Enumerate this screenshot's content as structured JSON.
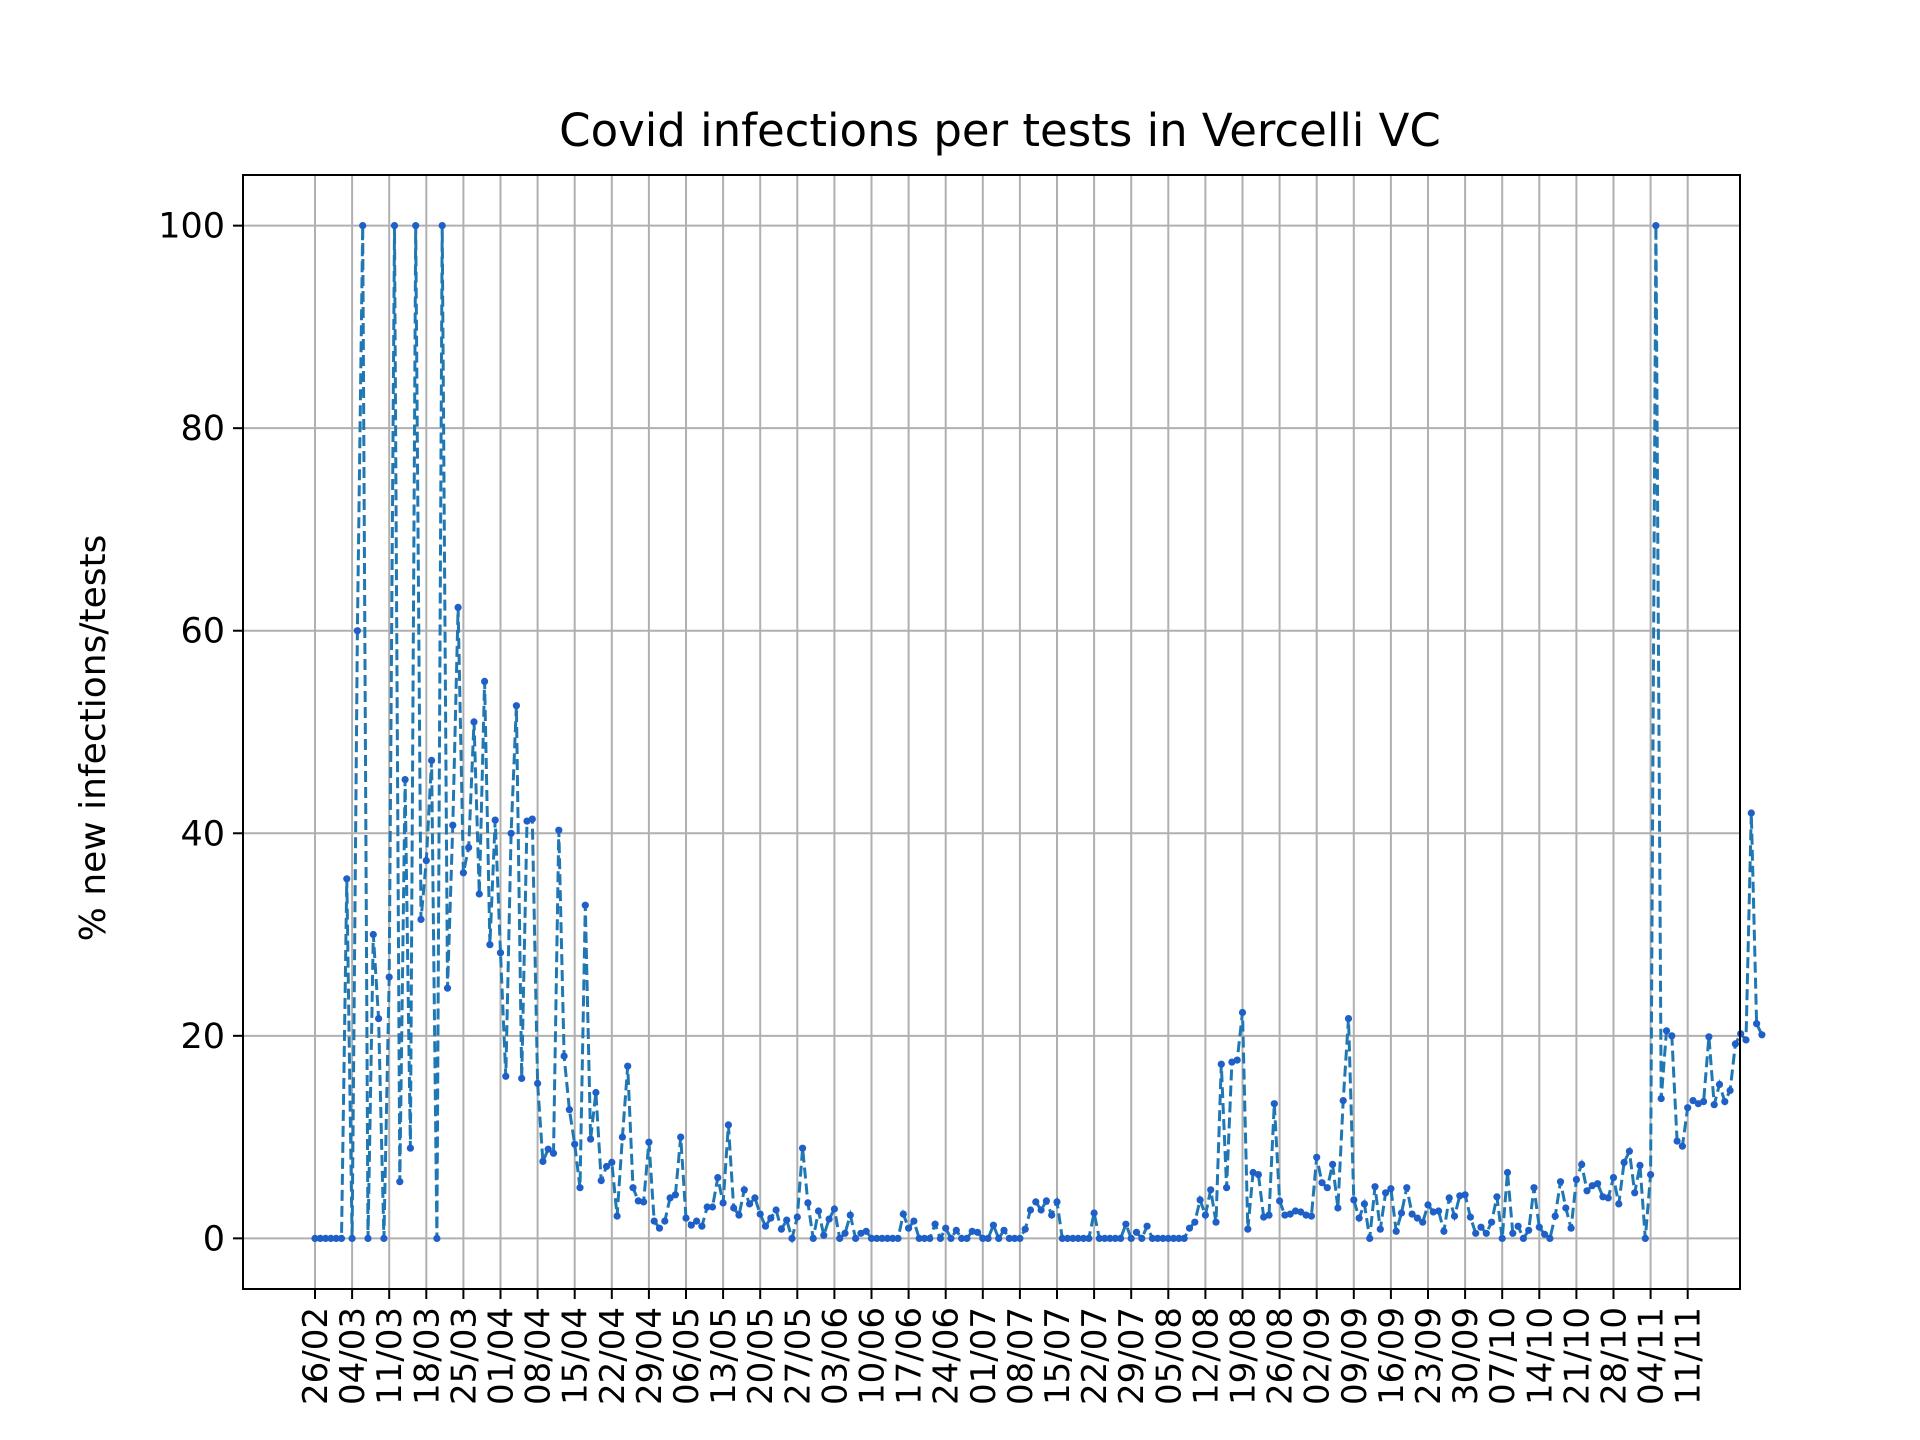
{
  "chart_data": {
    "type": "line",
    "title": "Covid infections per tests in Vercelli VC",
    "xlabel": "",
    "ylabel": "% new infections/tests",
    "ylim": [
      -5,
      105
    ],
    "y_ticks": [
      0,
      20,
      40,
      60,
      80,
      100
    ],
    "x_tick_labels": [
      "26/02",
      "04/03",
      "11/03",
      "18/03",
      "25/03",
      "01/04",
      "08/04",
      "15/04",
      "22/04",
      "29/04",
      "06/05",
      "13/05",
      "20/05",
      "27/05",
      "03/06",
      "10/06",
      "17/06",
      "24/06",
      "01/07",
      "08/07",
      "15/07",
      "22/07",
      "29/07",
      "05/08",
      "12/08",
      "19/08",
      "26/08",
      "02/09",
      "09/09",
      "16/09",
      "23/09",
      "30/09",
      "07/10",
      "14/10",
      "21/10",
      "28/10",
      "04/11",
      "11/11"
    ],
    "grid": true,
    "line_color": "#1f77b4",
    "marker_color": "#1f5fc8",
    "series": [
      {
        "values": [
          0,
          0,
          0,
          0,
          0,
          0,
          35.5,
          0,
          60,
          100,
          0,
          30,
          21.7,
          0,
          25.8,
          100,
          5.6,
          45.3,
          8.9,
          100,
          31.5,
          37.3,
          47.2,
          0,
          100,
          24.7,
          40.8,
          62.3,
          36.1,
          38.6,
          51,
          34,
          55,
          29,
          41.3,
          28.2,
          16,
          40,
          52.6,
          15.8,
          41.2,
          41.4,
          15.3,
          7.6,
          8.8,
          8.4,
          40.3,
          18,
          12.7,
          9.3,
          5,
          32.9,
          9.8,
          14.4,
          5.7,
          7.1,
          7.5,
          2.2,
          10,
          17,
          5,
          3.7,
          3.6,
          9.5,
          1.7,
          1,
          1.7,
          4,
          4.3,
          10,
          2,
          1.3,
          1.7,
          1.2,
          3.1,
          3.1,
          6,
          3.5,
          11.2,
          3,
          2.3,
          4.8,
          3.4,
          4,
          2.4,
          1.2,
          2,
          2.8,
          0.9,
          1.8,
          0,
          2.1,
          8.9,
          3.5,
          0,
          2.7,
          0.3,
          1.9,
          2.9,
          0,
          0.5,
          2.3,
          0,
          0.5,
          0.7,
          0,
          0,
          0,
          0,
          0,
          0,
          2.4,
          1,
          1.7,
          0,
          0,
          0,
          1.4,
          0,
          1,
          0,
          0.8,
          0,
          0,
          0.7,
          0.6,
          0,
          0,
          1.3,
          0,
          0.8,
          0,
          0,
          0,
          0.9,
          2.8,
          3.6,
          2.8,
          3.7,
          2.3,
          3.6,
          0,
          0,
          0,
          0,
          0,
          0,
          2.5,
          0,
          0,
          0,
          0,
          0,
          1.4,
          0,
          0.6,
          0,
          1.2,
          0,
          0,
          0,
          0,
          0,
          0,
          0,
          1,
          1.6,
          3.8,
          2.3,
          4.8,
          1.6,
          17.2,
          5,
          17.4,
          17.6,
          22.3,
          0.9,
          6.5,
          6.3,
          2.1,
          2.3,
          13.3,
          3.7,
          2.3,
          2.4,
          2.7,
          2.6,
          2.3,
          2.2,
          8,
          5.5,
          5,
          7.3,
          3,
          13.6,
          21.7,
          3.8,
          2,
          3.4,
          0,
          5.1,
          0.9,
          4.5,
          4.9,
          0.7,
          2.5,
          5,
          2.4,
          2,
          1.6,
          3.3,
          2.6,
          2.7,
          0.7,
          4,
          2.2,
          4.2,
          4.3,
          2.1,
          0.5,
          1.1,
          0.5,
          1.6,
          4.1,
          0,
          6.5,
          0.5,
          1.2,
          0,
          0.8,
          5,
          1.1,
          0.4,
          0,
          2.2,
          5.6,
          3,
          1,
          5.8,
          7.3,
          4.7,
          5.2,
          5.4,
          4.1,
          4,
          6,
          3.4,
          7.5,
          8.6,
          4.5,
          7.2,
          0,
          6.3,
          100,
          13.8,
          20.5,
          20,
          9.6,
          9.1,
          12.9,
          13.6,
          13.3,
          13.5,
          19.9,
          13.2,
          15.2,
          13.5,
          14.6,
          19.2,
          20.2,
          19.6,
          42,
          21.2,
          20.1
        ]
      }
    ]
  }
}
